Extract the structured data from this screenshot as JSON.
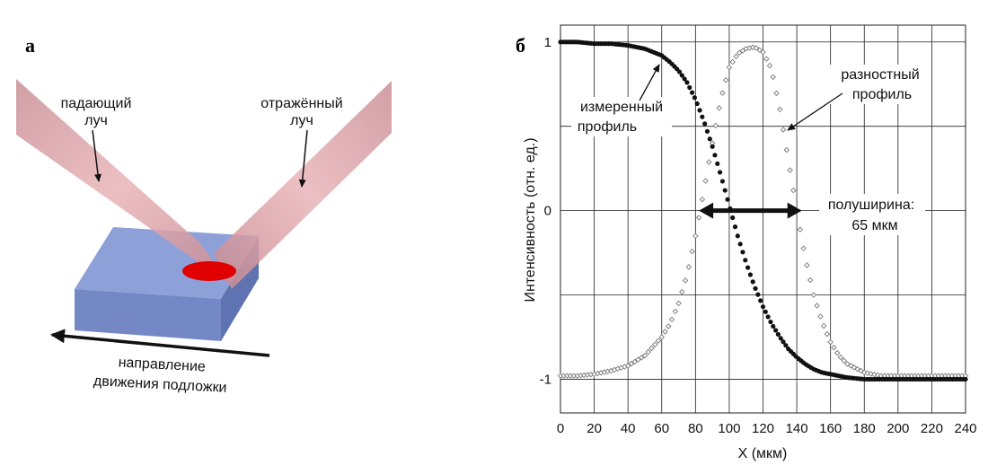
{
  "left_panel": {
    "panel_label": "а",
    "incident_beam_label": [
      "падающий",
      "луч"
    ],
    "reflected_beam_label": [
      "отражённый",
      "луч"
    ],
    "direction_label": [
      "направление",
      "движения подложки"
    ],
    "colors": {
      "beam": "#d79a9e",
      "substrate": "#7f93cf",
      "spot": "#e00000"
    }
  },
  "right_panel": {
    "panel_label": "б",
    "measured_profile_label": [
      "измеренный",
      "профиль"
    ],
    "difference_profile_label": [
      "разностный",
      "профиль"
    ],
    "fwhm_label": [
      "полуширина:",
      "65 мкм"
    ]
  },
  "chart_data": {
    "type": "scatter",
    "xlabel": "X (мкм)",
    "ylabel": "Интенсивность (отн. ед.)",
    "xlim": [
      0,
      240
    ],
    "ylim": [
      -1.2,
      1.1
    ],
    "x_ticks": [
      "0",
      "20",
      "40",
      "60",
      "80",
      "100",
      "120",
      "140",
      "160",
      "180",
      "200",
      "220",
      "240"
    ],
    "y_ticks": [
      "1",
      "0",
      "-1"
    ],
    "grid": true,
    "series": [
      {
        "name": "измеренный профиль",
        "marker": "filled-circle",
        "color": "#111111",
        "x": [
          0,
          10,
          20,
          30,
          40,
          50,
          60,
          65,
          70,
          75,
          80,
          85,
          90,
          95,
          100,
          105,
          110,
          115,
          120,
          125,
          130,
          135,
          140,
          145,
          150,
          155,
          160,
          165,
          170,
          180,
          190,
          200,
          220,
          240
        ],
        "y": [
          1.0,
          1.0,
          0.99,
          0.99,
          0.98,
          0.96,
          0.92,
          0.88,
          0.83,
          0.76,
          0.66,
          0.53,
          0.38,
          0.21,
          0.03,
          -0.15,
          -0.31,
          -0.45,
          -0.57,
          -0.67,
          -0.75,
          -0.82,
          -0.87,
          -0.91,
          -0.94,
          -0.96,
          -0.97,
          -0.98,
          -0.99,
          -1.0,
          -1.0,
          -1.0,
          -1.0,
          -1.0
        ]
      },
      {
        "name": "разностный профиль",
        "marker": "open-diamond",
        "color": "#777777",
        "x": [
          0,
          10,
          20,
          30,
          40,
          50,
          60,
          65,
          70,
          75,
          80,
          85,
          90,
          95,
          100,
          105,
          110,
          115,
          120,
          125,
          130,
          135,
          140,
          145,
          150,
          155,
          160,
          165,
          170,
          180,
          190,
          200,
          210,
          220,
          240
        ],
        "y": [
          -0.98,
          -0.98,
          -0.97,
          -0.95,
          -0.92,
          -0.86,
          -0.75,
          -0.67,
          -0.55,
          -0.38,
          -0.15,
          0.12,
          0.4,
          0.66,
          0.85,
          0.93,
          0.96,
          0.97,
          0.94,
          0.84,
          0.6,
          0.3,
          0.0,
          -0.28,
          -0.5,
          -0.66,
          -0.78,
          -0.86,
          -0.91,
          -0.96,
          -0.98,
          -0.98,
          -0.98,
          -0.98,
          -0.98
        ]
      }
    ],
    "annotations": [
      {
        "text": "полуширина: 65 мкм",
        "arrow_from_x": 82,
        "arrow_to_x": 143,
        "y": 0
      }
    ]
  }
}
